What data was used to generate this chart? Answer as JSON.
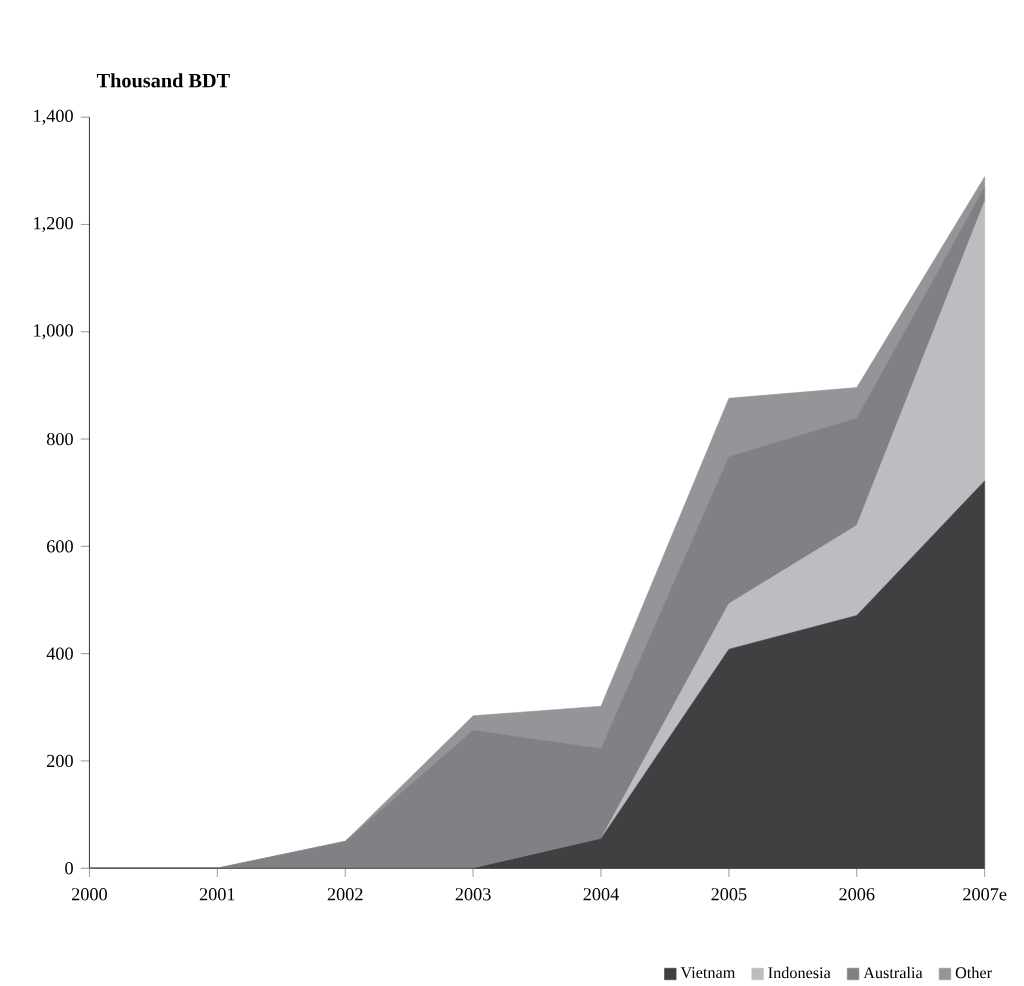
{
  "chart_data": {
    "type": "area",
    "stacked": true,
    "ylabel": "Thousand BDT",
    "categories": [
      "2000",
      "2001",
      "2002",
      "2003",
      "2004",
      "2005",
      "2006",
      "2007e"
    ],
    "series": [
      {
        "name": "Vietnam",
        "color": "#404042",
        "values": [
          0,
          0,
          0,
          0,
          55,
          408,
          471,
          722
        ]
      },
      {
        "name": "Indonesia",
        "color": "#bcbdc0",
        "values": [
          0,
          0,
          0,
          0,
          0,
          85,
          168,
          521
        ]
      },
      {
        "name": "Australia",
        "color": "#808184",
        "values": [
          0,
          0,
          50,
          257,
          168,
          274,
          200,
          27
        ]
      },
      {
        "name": "Other",
        "color": "#939598",
        "values": [
          0,
          0,
          0,
          27,
          79,
          109,
          57,
          19
        ]
      }
    ],
    "ylim": [
      0,
      1400
    ],
    "yticks": [
      0,
      200,
      400,
      600,
      800,
      {
        "value": 1000,
        "label": "1,000"
      },
      {
        "value": 1200,
        "label": "1,200"
      },
      {
        "value": 1400,
        "label": "1,400"
      }
    ],
    "grid": false,
    "legend": "bottom right"
  }
}
